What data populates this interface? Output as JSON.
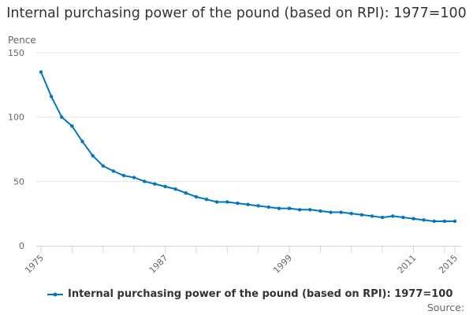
{
  "chart_data": {
    "type": "line",
    "title": "Internal purchasing power of the pound (based on RPI): 1977=100",
    "ylabel": "Pence",
    "xlabel": "",
    "ylim": [
      0,
      150
    ],
    "xlim": [
      1975,
      2015
    ],
    "yticks": [
      0,
      50,
      100,
      150
    ],
    "xtick_labels": [
      "1975",
      "1987",
      "1999",
      "2011",
      "2015"
    ],
    "grid": true,
    "legend": "bottom",
    "color": "#0075c2",
    "series": [
      {
        "name": "Internal purchasing power of the pound (based on RPI): 1977=100",
        "x": [
          1975,
          1976,
          1977,
          1978,
          1979,
          1980,
          1981,
          1982,
          1983,
          1984,
          1985,
          1986,
          1987,
          1988,
          1989,
          1990,
          1991,
          1992,
          1993,
          1994,
          1995,
          1996,
          1997,
          1998,
          1999,
          2000,
          2001,
          2002,
          2003,
          2004,
          2005,
          2006,
          2007,
          2008,
          2009,
          2010,
          2011,
          2012,
          2013,
          2014,
          2015
        ],
        "values": [
          135,
          116,
          100,
          93,
          81,
          70,
          62,
          58,
          54.5,
          53,
          50,
          48,
          46,
          44,
          41,
          38,
          36,
          34,
          34,
          33,
          32,
          31,
          30,
          29,
          29,
          28,
          28,
          27,
          26,
          26,
          25,
          24,
          23,
          22,
          23,
          22,
          21,
          20,
          19,
          19,
          19
        ]
      }
    ]
  },
  "source_label": "Source:"
}
